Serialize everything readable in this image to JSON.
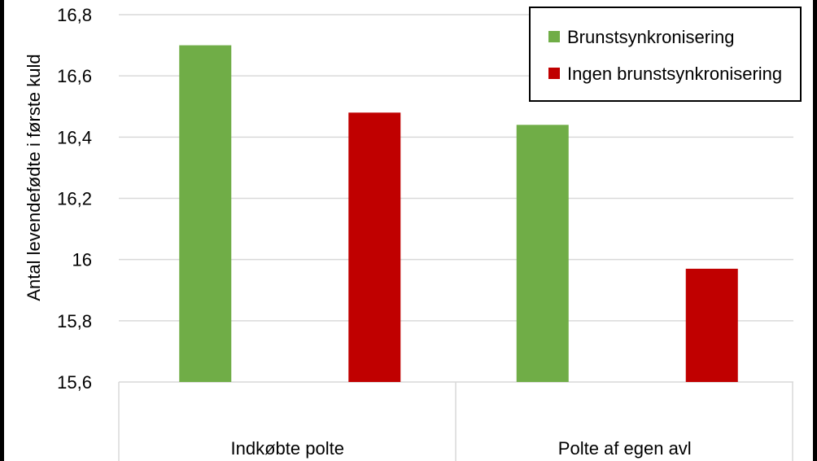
{
  "chart_data": {
    "type": "bar",
    "title": "",
    "xlabel": "",
    "ylabel": "Antal levendefødte  i første kuld",
    "categories": [
      "Indkøbte polte",
      "Polte af egen avl"
    ],
    "series": [
      {
        "name": "Brunstsynkronisering",
        "color": "#70ad47",
        "values": [
          16.7,
          16.44
        ]
      },
      {
        "name": "Ingen brunstsynkronisering",
        "color": "#c00000",
        "values": [
          16.48,
          15.97
        ]
      }
    ],
    "ylim": [
      15.6,
      16.8
    ],
    "yticks": [
      "15,6",
      "15,8",
      "16",
      "16,2",
      "16,4",
      "16,6",
      "16,8"
    ],
    "ytick_values": [
      15.6,
      15.8,
      16.0,
      16.2,
      16.4,
      16.6,
      16.8
    ],
    "grid": true,
    "legend_position": "top-right"
  }
}
